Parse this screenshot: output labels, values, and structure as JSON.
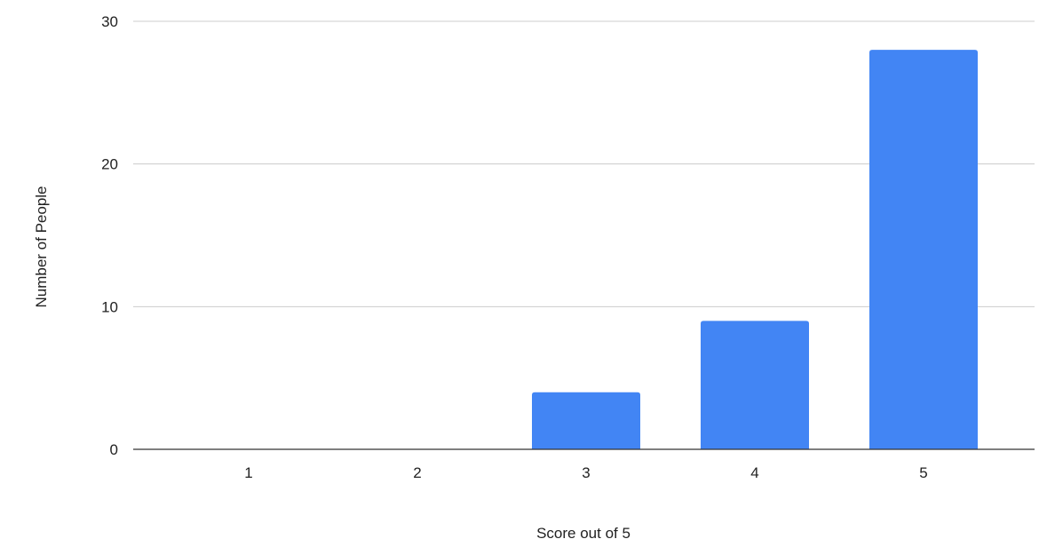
{
  "chart_data": {
    "type": "bar",
    "title": "",
    "xlabel": "Score out of 5",
    "ylabel": "Number of People",
    "categories": [
      "1",
      "2",
      "3",
      "4",
      "5"
    ],
    "series": [
      {
        "values": [
          0,
          0,
          4,
          9,
          28
        ]
      }
    ],
    "ylim": [
      0,
      30
    ],
    "yticks": [
      "0",
      "10",
      "20",
      "30"
    ],
    "grid": true,
    "legend": "none",
    "colors": {
      "bar": "#4285f4",
      "grid": "#cccccc",
      "baseline": "#333333"
    }
  }
}
